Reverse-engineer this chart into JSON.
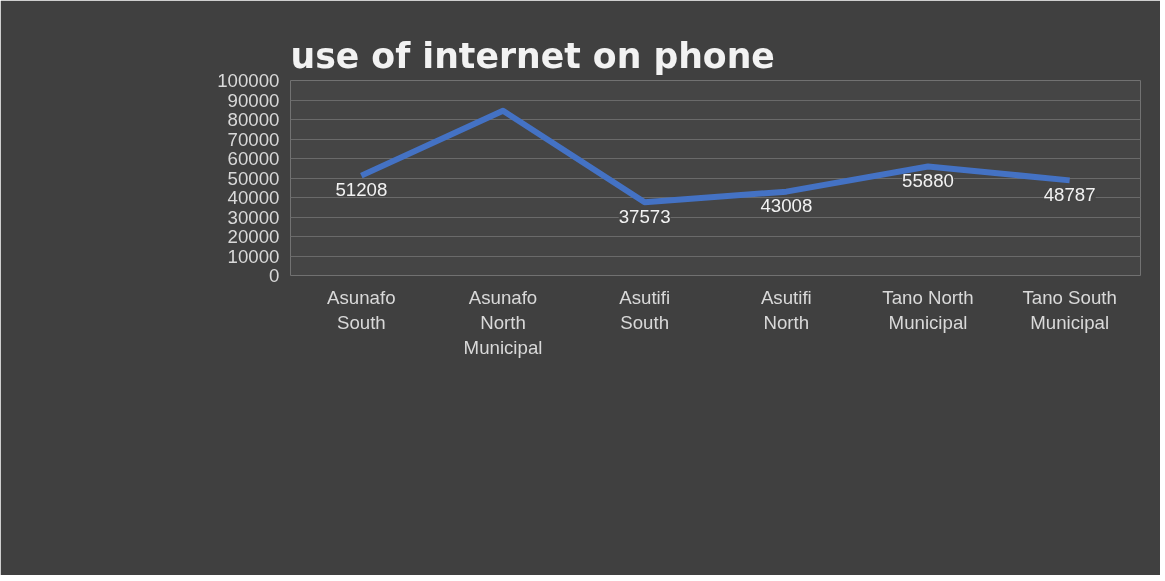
{
  "chart_data": {
    "type": "line",
    "title": "use of internet on phone",
    "categories": [
      "Asunafo South",
      "Asunafo North Municipal",
      "Asutifi South",
      "Asutifi North",
      "Tano North Municipal",
      "Tano South Municipal"
    ],
    "series": [
      {
        "color": "#4472c4",
        "values": [
          51208,
          84500,
          37573,
          43008,
          55880,
          48787
        ],
        "value_labels": [
          "51208",
          null,
          "37573",
          "43008",
          "55880",
          "48787"
        ]
      }
    ],
    "ylim": [
      0,
      100000
    ],
    "yticks": [
      0,
      10000,
      20000,
      30000,
      40000,
      50000,
      60000,
      70000,
      80000,
      90000,
      100000
    ],
    "grid": "y",
    "marker": "none",
    "line_style": "solid"
  }
}
